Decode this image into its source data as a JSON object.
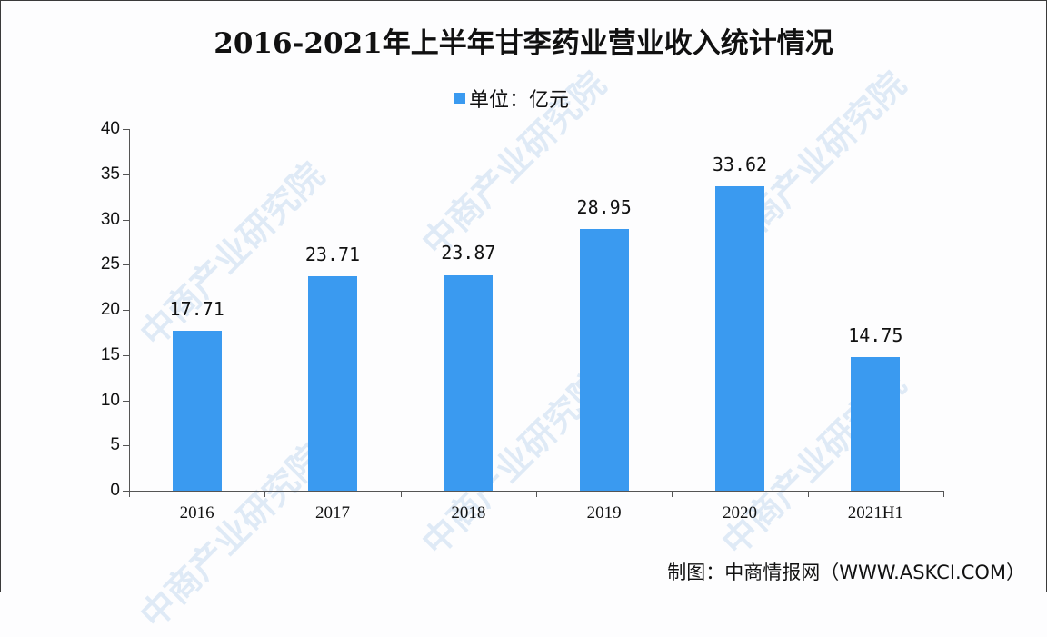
{
  "title": "2016-2021年上半年甘李药业营业收入统计情况",
  "legend": {
    "label": "单位：亿元",
    "color": "#3a9af0"
  },
  "source": "制图：中商情报网（WWW.ASKCI.COM）",
  "watermark": "中商产业研究院",
  "y_ticks": [
    "0",
    "5",
    "10",
    "15",
    "20",
    "25",
    "30",
    "35",
    "40"
  ],
  "chart_data": {
    "type": "bar",
    "title": "2016-2021年上半年甘李药业营业收入统计情况",
    "xlabel": "",
    "ylabel": "单位：亿元",
    "categories": [
      "2016",
      "2017",
      "2018",
      "2019",
      "2020",
      "2021H1"
    ],
    "values": [
      17.71,
      23.71,
      23.87,
      28.95,
      33.62,
      14.75
    ],
    "value_labels": [
      "17.71",
      "23.71",
      "23.87",
      "28.95",
      "33.62",
      "14.75"
    ],
    "series": [
      {
        "name": "单位：亿元",
        "values": [
          17.71,
          23.71,
          23.87,
          28.95,
          33.62,
          14.75
        ]
      }
    ],
    "ylim": [
      0,
      40
    ],
    "ytick_step": 5,
    "grid": false,
    "legend_position": "top",
    "bar_color": "#3a9af0"
  }
}
